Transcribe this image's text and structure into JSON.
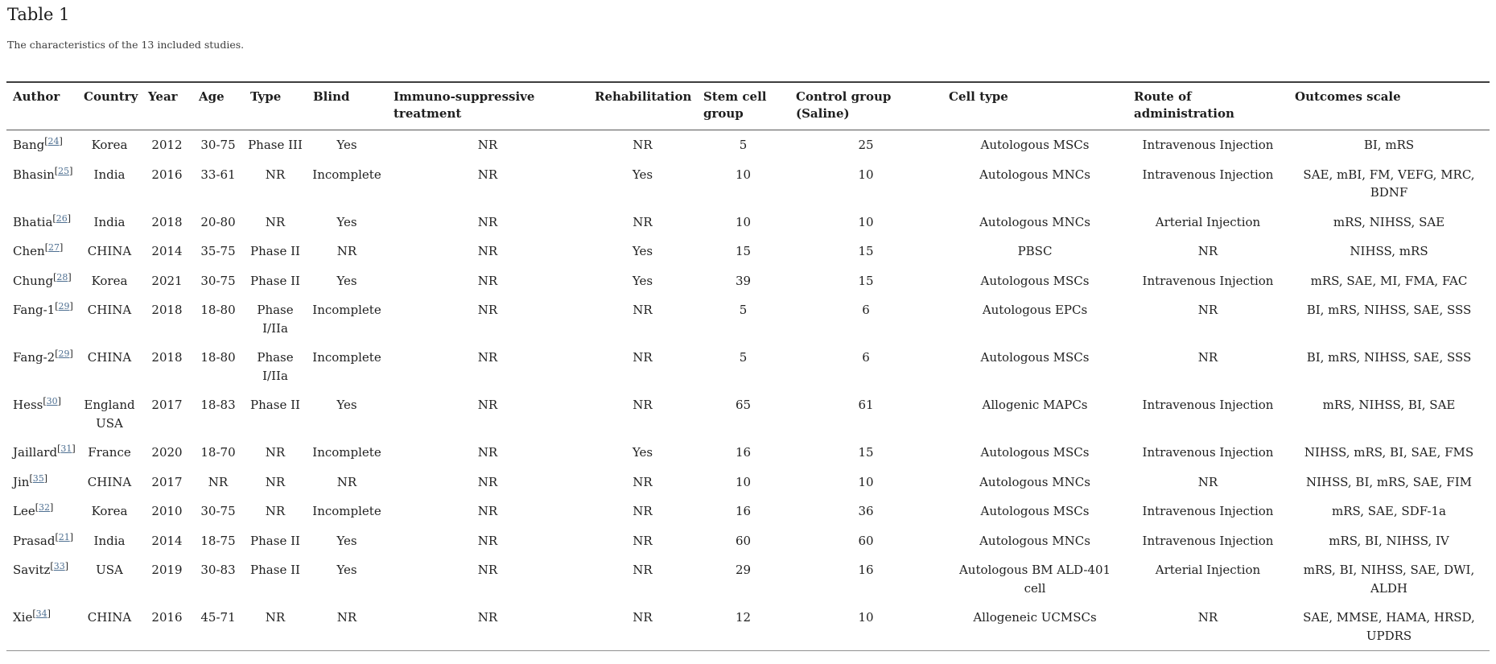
{
  "page": {
    "title": "Table 1",
    "caption": "The characteristics of the 13 included studies."
  },
  "colors": {
    "reference_link": "#4e6f91",
    "text": "#212121"
  },
  "table": {
    "columns": [
      {
        "key": "author",
        "label": "Author"
      },
      {
        "key": "country",
        "label": "Country"
      },
      {
        "key": "year",
        "label": "Year"
      },
      {
        "key": "age",
        "label": "Age"
      },
      {
        "key": "type",
        "label": "Type"
      },
      {
        "key": "blind",
        "label": "Blind"
      },
      {
        "key": "immuno",
        "label": "Immuno-suppressive\ntreatment"
      },
      {
        "key": "rehab",
        "label": "Rehabilitation"
      },
      {
        "key": "stem",
        "label": "Stem cell\ngroup"
      },
      {
        "key": "control",
        "label": "Control group\n(Saline)"
      },
      {
        "key": "cell_type",
        "label": "Cell type"
      },
      {
        "key": "route",
        "label": "Route of\nadministration"
      },
      {
        "key": "outcomes",
        "label": "Outcomes scale"
      }
    ],
    "rows": [
      {
        "author": "Bang",
        "ref": "24",
        "country": "Korea",
        "year": "2012",
        "age": "30-75",
        "type": "Phase III",
        "blind": "Yes",
        "immuno": "NR",
        "rehab": "NR",
        "stem": "5",
        "control": "25",
        "cell_type": "Autologous MSCs",
        "route": "Intravenous Injection",
        "outcomes": "BI, mRS"
      },
      {
        "author": "Bhasin",
        "ref": "25",
        "country": "India",
        "year": "2016",
        "age": "33-61",
        "type": "NR",
        "blind": "Incomplete",
        "immuno": "NR",
        "rehab": "Yes",
        "stem": "10",
        "control": "10",
        "cell_type": "Autologous MNCs",
        "route": "Intravenous Injection",
        "outcomes": "SAE, mBI, FM, VEFG, MRC,\nBDNF"
      },
      {
        "author": "Bhatia",
        "ref": "26",
        "country": "India",
        "year": "2018",
        "age": "20-80",
        "type": "NR",
        "blind": "Yes",
        "immuno": "NR",
        "rehab": "NR",
        "stem": "10",
        "control": "10",
        "cell_type": "Autologous MNCs",
        "route": "Arterial Injection",
        "outcomes": "mRS, NIHSS, SAE"
      },
      {
        "author": "Chen",
        "ref": "27",
        "country": "CHINA",
        "year": "2014",
        "age": "35-75",
        "type": "Phase II",
        "blind": "NR",
        "immuno": "NR",
        "rehab": "Yes",
        "stem": "15",
        "control": "15",
        "cell_type": "PBSC",
        "route": "NR",
        "outcomes": "NIHSS, mRS"
      },
      {
        "author": "Chung",
        "ref": "28",
        "country": "Korea",
        "year": "2021",
        "age": "30-75",
        "type": "Phase II",
        "blind": "Yes",
        "immuno": "NR",
        "rehab": "Yes",
        "stem": "39",
        "control": "15",
        "cell_type": "Autologous MSCs",
        "route": "Intravenous Injection",
        "outcomes": "mRS, SAE, MI, FMA, FAC"
      },
      {
        "author": "Fang-1",
        "ref": "29",
        "country": "CHINA",
        "year": "2018",
        "age": "18-80",
        "type": "Phase\nI/IIa",
        "blind": "Incomplete",
        "immuno": "NR",
        "rehab": "NR",
        "stem": "5",
        "control": "6",
        "cell_type": "Autologous EPCs",
        "route": "NR",
        "outcomes": "BI, mRS, NIHSS, SAE, SSS"
      },
      {
        "author": "Fang-2",
        "ref": "29",
        "country": "CHINA",
        "year": "2018",
        "age": "18-80",
        "type": "Phase\nI/IIa",
        "blind": "Incomplete",
        "immuno": "NR",
        "rehab": "NR",
        "stem": "5",
        "control": "6",
        "cell_type": "Autologous MSCs",
        "route": "NR",
        "outcomes": "BI, mRS, NIHSS, SAE, SSS"
      },
      {
        "author": "Hess",
        "ref": "30",
        "country": "England\nUSA",
        "year": "2017",
        "age": "18-83",
        "type": "Phase II",
        "blind": "Yes",
        "immuno": "NR",
        "rehab": "NR",
        "stem": "65",
        "control": "61",
        "cell_type": "Allogenic MAPCs",
        "route": "Intravenous Injection",
        "outcomes": "mRS, NIHSS, BI, SAE"
      },
      {
        "author": "Jaillard",
        "ref": "31",
        "country": "France",
        "year": "2020",
        "age": "18-70",
        "type": "NR",
        "blind": "Incomplete",
        "immuno": "NR",
        "rehab": "Yes",
        "stem": "16",
        "control": "15",
        "cell_type": "Autologous MSCs",
        "route": "Intravenous Injection",
        "outcomes": "NIHSS, mRS, BI, SAE, FMS"
      },
      {
        "author": "Jin",
        "ref": "35",
        "country": "CHINA",
        "year": "2017",
        "age": "NR",
        "type": "NR",
        "blind": "NR",
        "immuno": "NR",
        "rehab": "NR",
        "stem": "10",
        "control": "10",
        "cell_type": "Autologous MNCs",
        "route": "NR",
        "outcomes": "NIHSS, BI, mRS, SAE, FIM"
      },
      {
        "author": "Lee",
        "ref": "32",
        "country": "Korea",
        "year": "2010",
        "age": "30-75",
        "type": "NR",
        "blind": "Incomplete",
        "immuno": "NR",
        "rehab": "NR",
        "stem": "16",
        "control": "36",
        "cell_type": "Autologous MSCs",
        "route": "Intravenous Injection",
        "outcomes": "mRS, SAE, SDF-1a"
      },
      {
        "author": "Prasad",
        "ref": "21",
        "country": "India",
        "year": "2014",
        "age": "18-75",
        "type": "Phase II",
        "blind": "Yes",
        "immuno": "NR",
        "rehab": "NR",
        "stem": "60",
        "control": "60",
        "cell_type": "Autologous MNCs",
        "route": "Intravenous Injection",
        "outcomes": "mRS, BI, NIHSS, IV"
      },
      {
        "author": "Savitz",
        "ref": "33",
        "country": "USA",
        "year": "2019",
        "age": "30-83",
        "type": "Phase II",
        "blind": "Yes",
        "immuno": "NR",
        "rehab": "NR",
        "stem": "29",
        "control": "16",
        "cell_type": "Autologous BM ALD-401\ncell",
        "route": "Arterial Injection",
        "outcomes": "mRS, BI, NIHSS, SAE, DWI,\nALDH"
      },
      {
        "author": "Xie",
        "ref": "34",
        "country": "CHINA",
        "year": "2016",
        "age": "45-71",
        "type": "NR",
        "blind": "NR",
        "immuno": "NR",
        "rehab": "NR",
        "stem": "12",
        "control": "10",
        "cell_type": "Allogeneic UCMSCs",
        "route": "NR",
        "outcomes": "SAE, MMSE, HAMA, HRSD,\nUPDRS"
      }
    ]
  }
}
